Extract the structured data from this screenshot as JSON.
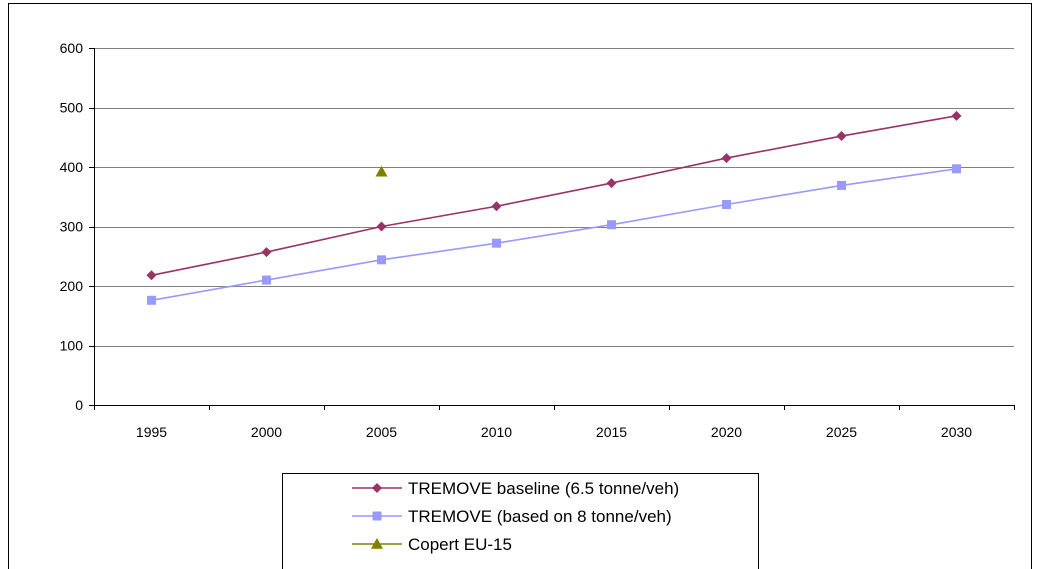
{
  "chart_data": {
    "type": "line",
    "title": "",
    "xlabel": "",
    "ylabel": "",
    "categories": [
      "1995",
      "2000",
      "2005",
      "2010",
      "2015",
      "2020",
      "2025",
      "2030"
    ],
    "ylim": [
      0,
      600
    ],
    "yticks": [
      0,
      100,
      200,
      300,
      400,
      500,
      600
    ],
    "grid": "horizontal",
    "legend_position": "bottom",
    "series": [
      {
        "name": "TREMOVE baseline (6.5 tonne/veh)",
        "color": "#993366",
        "marker": "diamond",
        "values": [
          218,
          257,
          300,
          334,
          373,
          415,
          452,
          486
        ]
      },
      {
        "name": "TREMOVE (based on 8 tonne/veh)",
        "color": "#9999ff",
        "marker": "square",
        "values": [
          176,
          210,
          244,
          272,
          303,
          337,
          369,
          397
        ]
      },
      {
        "name": "Copert EU-15",
        "color": "#808000",
        "marker": "triangle",
        "values": [
          null,
          null,
          392,
          null,
          null,
          null,
          null,
          null
        ]
      }
    ]
  }
}
